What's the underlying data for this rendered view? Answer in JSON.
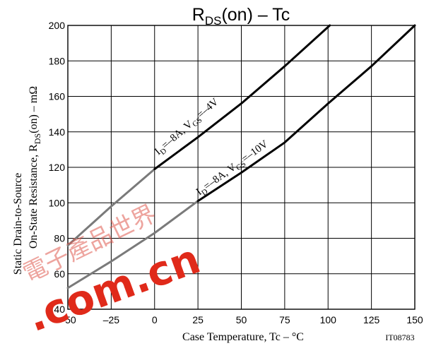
{
  "chart_data": {
    "type": "line",
    "title": "RDS(on)  –  Tc",
    "title_parts": {
      "main": "R",
      "sub": "DS",
      "rest": "(on)  –  Tc"
    },
    "xlabel": "Case Temperature, Tc  –  °C",
    "ylabel_line1": "Static Drain-to-Source",
    "ylabel_line2": {
      "a": "On-State Resistance, R",
      "sub": "DS",
      "b": "(on)  –  mΩ"
    },
    "xlim": [
      -50,
      150
    ],
    "ylim": [
      40,
      200
    ],
    "x_ticks": [
      -50,
      -25,
      0,
      25,
      50,
      75,
      100,
      125,
      150
    ],
    "x_tick_labels": [
      "–50",
      "–25",
      "0",
      "25",
      "50",
      "75",
      "100",
      "125",
      "150"
    ],
    "y_ticks": [
      40,
      60,
      80,
      100,
      120,
      140,
      160,
      180,
      200
    ],
    "y_tick_labels": [
      "40",
      "60",
      "80",
      "100",
      "120",
      "140",
      "160",
      "180",
      "200"
    ],
    "grid": true,
    "series": [
      {
        "name": "ID=–8A, VGS=–4V",
        "label": {
          "a": "I",
          "aSub": "D",
          "b": "=–8A, V",
          "bSub": "GS",
          "c": "=–4V"
        },
        "x": [
          -50,
          -25,
          0,
          25,
          50,
          75,
          101
        ],
        "y": [
          76,
          98,
          119,
          137,
          156,
          177,
          200
        ]
      },
      {
        "name": "ID=–8A, VGS=–10V",
        "label": {
          "a": "I",
          "aSub": "D",
          "b": "=–8A, V",
          "bSub": "GS",
          "c": "=–10V"
        },
        "x": [
          -50,
          -25,
          0,
          25,
          50,
          75,
          100,
          125,
          150
        ],
        "y": [
          52,
          67,
          83,
          101,
          117,
          134,
          156,
          177,
          200
        ]
      }
    ],
    "figure_code": "IT08783"
  },
  "watermark": {
    "text": ".com.cn",
    "color": "#e02a1a"
  }
}
